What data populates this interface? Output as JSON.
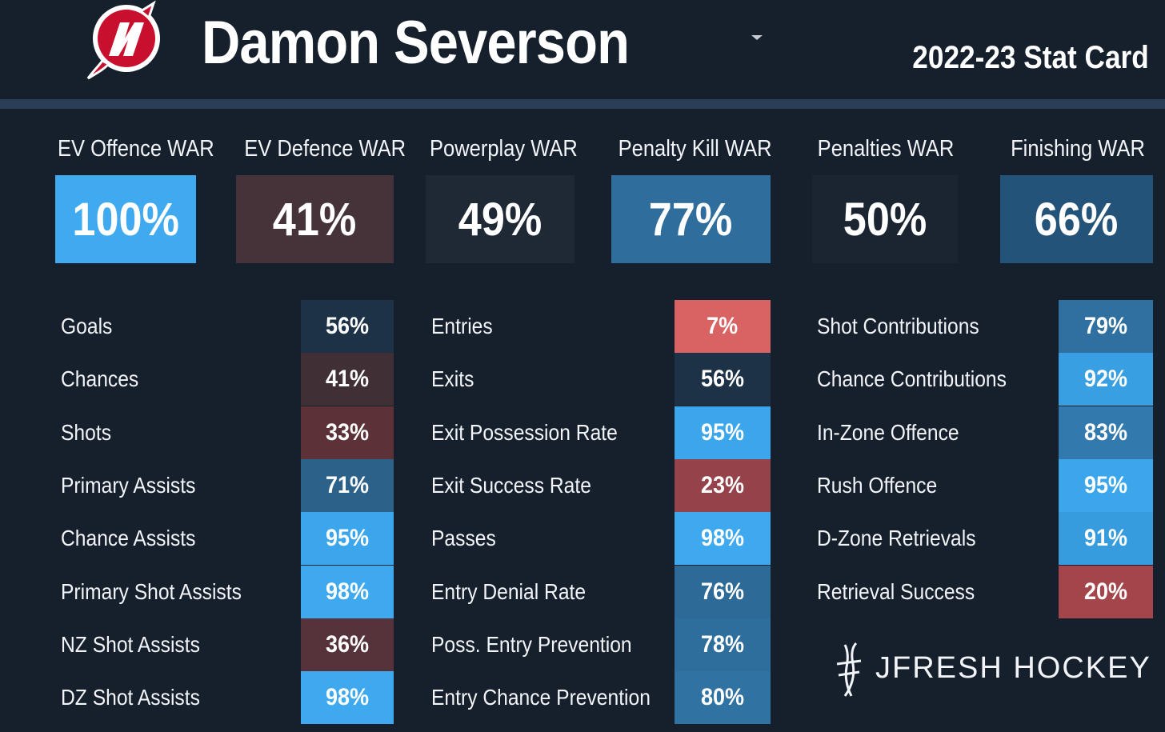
{
  "header": {
    "player_name": "Damon Severson",
    "card_title": "2022-23 Stat Card"
  },
  "war": [
    {
      "label": "EV Offence WAR",
      "value": "100%",
      "color": "#3faaf0"
    },
    {
      "label": "EV Defence WAR",
      "value": "41%",
      "color": "#463239"
    },
    {
      "label": "Powerplay WAR",
      "value": "49%",
      "color": "#1f2835"
    },
    {
      "label": "Penalty Kill WAR",
      "value": "77%",
      "color": "#2f6e9c"
    },
    {
      "label": "Penalties WAR",
      "value": "50%",
      "color": "#1b2431"
    },
    {
      "label": "Finishing WAR",
      "value": "66%",
      "color": "#24537a"
    }
  ],
  "col1": [
    {
      "label": "Goals",
      "value": "56%",
      "color": "#1d3147"
    },
    {
      "label": "Chances",
      "value": "41%",
      "color": "#412f36"
    },
    {
      "label": "Shots",
      "value": "33%",
      "color": "#5c3138"
    },
    {
      "label": "Primary Assists",
      "value": "71%",
      "color": "#2c6189"
    },
    {
      "label": "Chance Assists",
      "value": "95%",
      "color": "#3ba6ec"
    },
    {
      "label": "Primary Shot Assists",
      "value": "98%",
      "color": "#3ea9ef"
    },
    {
      "label": "NZ Shot Assists",
      "value": "36%",
      "color": "#56323a"
    },
    {
      "label": "DZ Shot Assists",
      "value": "98%",
      "color": "#3ea9ef"
    }
  ],
  "col2": [
    {
      "label": "Entries",
      "value": "7%",
      "color": "#d96263"
    },
    {
      "label": "Exits",
      "value": "56%",
      "color": "#1d3147"
    },
    {
      "label": "Exit Possession Rate",
      "value": "95%",
      "color": "#3ba6ec"
    },
    {
      "label": "Exit Success Rate",
      "value": "23%",
      "color": "#95424a"
    },
    {
      "label": "Passes",
      "value": "98%",
      "color": "#3ea9ef"
    },
    {
      "label": "Entry Denial Rate",
      "value": "76%",
      "color": "#2d6a97"
    },
    {
      "label": "Poss. Entry Prevention",
      "value": "78%",
      "color": "#2e6e9d"
    },
    {
      "label": "Entry Chance Prevention",
      "value": "80%",
      "color": "#3072a2"
    }
  ],
  "col3": [
    {
      "label": "Shot Contributions",
      "value": "79%",
      "color": "#2f70a0"
    },
    {
      "label": "Chance Contributions",
      "value": "92%",
      "color": "#389fe2"
    },
    {
      "label": "In-Zone Offence",
      "value": "83%",
      "color": "#3279ad"
    },
    {
      "label": "Rush Offence",
      "value": "95%",
      "color": "#3ba6ec"
    },
    {
      "label": "D-Zone Retrievals",
      "value": "91%",
      "color": "#379cdd"
    },
    {
      "label": "Retrieval Success",
      "value": "20%",
      "color": "#a4454c"
    }
  ],
  "brand": {
    "text": "JFRESH HOCKEY"
  }
}
